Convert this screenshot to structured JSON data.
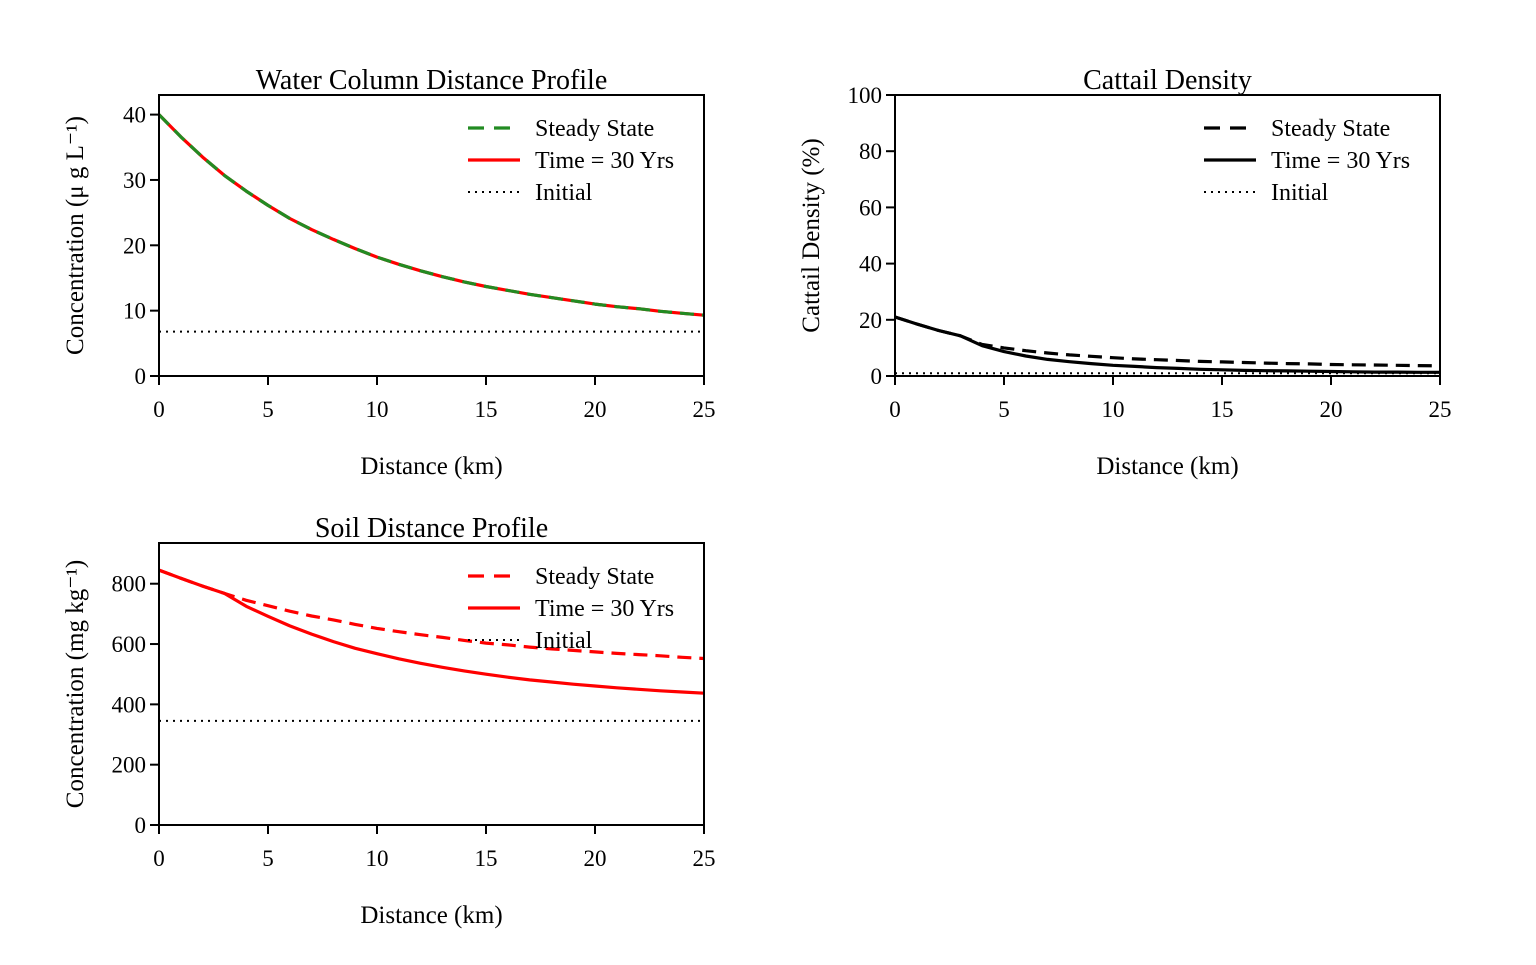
{
  "chart_data": [
    {
      "type": "line",
      "title": "Water Column Distance Profile",
      "xlabel": "Distance (km)",
      "ylabel": "Concentration (μ g L⁻¹)",
      "xlim": [
        0,
        25
      ],
      "ylim": [
        0,
        43
      ],
      "xticks": [
        0,
        5,
        10,
        15,
        20,
        25
      ],
      "yticks": [
        0,
        10,
        20,
        30,
        40
      ],
      "x": [
        0,
        1,
        2,
        3,
        4,
        5,
        6,
        7,
        8,
        9,
        10,
        11,
        12,
        13,
        14,
        15,
        16,
        17,
        18,
        19,
        20,
        21,
        22,
        23,
        24,
        25
      ],
      "legend_position": "top-right",
      "grid": false,
      "series": [
        {
          "name": "Steady State",
          "style": "dashed",
          "color": "#228B22",
          "values": [
            40.0,
            36.6,
            33.5,
            30.7,
            28.3,
            26.1,
            24.1,
            22.4,
            20.9,
            19.5,
            18.2,
            17.1,
            16.1,
            15.2,
            14.4,
            13.7,
            13.1,
            12.5,
            12.0,
            11.5,
            11.0,
            10.6,
            10.3,
            9.9,
            9.6,
            9.3
          ]
        },
        {
          "name": "Time = 30 Yrs",
          "style": "solid",
          "color": "#ff0000",
          "values": [
            40.0,
            36.6,
            33.5,
            30.7,
            28.3,
            26.1,
            24.1,
            22.4,
            20.9,
            19.5,
            18.2,
            17.1,
            16.1,
            15.2,
            14.4,
            13.7,
            13.1,
            12.5,
            12.0,
            11.5,
            11.0,
            10.6,
            10.3,
            9.9,
            9.6,
            9.3
          ]
        },
        {
          "name": "Initial",
          "style": "dotted",
          "color": "#000000",
          "values": [
            6.8,
            6.8,
            6.8,
            6.8,
            6.8,
            6.8,
            6.8,
            6.8,
            6.8,
            6.8,
            6.8,
            6.8,
            6.8,
            6.8,
            6.8,
            6.8,
            6.8,
            6.8,
            6.8,
            6.8,
            6.8,
            6.8,
            6.8,
            6.8,
            6.8,
            6.8
          ]
        }
      ]
    },
    {
      "type": "line",
      "title": "Cattail Density",
      "xlabel": "Distance (km)",
      "ylabel": "Cattail Density (%)",
      "xlim": [
        0,
        25
      ],
      "ylim": [
        0,
        100
      ],
      "xticks": [
        0,
        5,
        10,
        15,
        20,
        25
      ],
      "yticks": [
        0,
        20,
        40,
        60,
        80,
        100
      ],
      "x": [
        0,
        1,
        2,
        3,
        4,
        5,
        6,
        7,
        8,
        9,
        10,
        11,
        12,
        13,
        14,
        15,
        16,
        17,
        18,
        19,
        20,
        21,
        22,
        23,
        24,
        25
      ],
      "legend_position": "top-right",
      "grid": false,
      "series": [
        {
          "name": "Steady State",
          "style": "dashed",
          "color": "#000000",
          "values": [
            21.0,
            18.5,
            16.2,
            14.3,
            11.2,
            10.0,
            9.0,
            8.2,
            7.5,
            7.0,
            6.5,
            6.1,
            5.8,
            5.5,
            5.2,
            5.0,
            4.8,
            4.6,
            4.4,
            4.3,
            4.1,
            4.0,
            3.9,
            3.8,
            3.7,
            3.6
          ]
        },
        {
          "name": "Time = 30 Yrs",
          "style": "solid",
          "color": "#000000",
          "values": [
            21.0,
            18.5,
            16.2,
            14.3,
            10.8,
            8.7,
            7.1,
            5.9,
            5.1,
            4.4,
            3.8,
            3.4,
            3.0,
            2.7,
            2.4,
            2.2,
            2.0,
            1.9,
            1.8,
            1.7,
            1.6,
            1.5,
            1.4,
            1.4,
            1.3,
            1.3
          ]
        },
        {
          "name": "Initial",
          "style": "dotted",
          "color": "#000000",
          "values": [
            1.0,
            1.0,
            1.0,
            1.0,
            1.0,
            1.0,
            1.0,
            1.0,
            1.0,
            1.0,
            1.0,
            1.0,
            1.0,
            1.0,
            1.0,
            1.0,
            1.0,
            1.0,
            1.0,
            1.0,
            1.0,
            1.0,
            1.0,
            1.0,
            1.0,
            1.0
          ]
        }
      ]
    },
    {
      "type": "line",
      "title": "Soil Distance Profile",
      "xlabel": "Distance (km)",
      "ylabel": "Concentration (mg kg⁻¹)",
      "xlim": [
        0,
        25
      ],
      "ylim": [
        0,
        935
      ],
      "xticks": [
        0,
        5,
        10,
        15,
        20,
        25
      ],
      "yticks": [
        0,
        200,
        400,
        600,
        800
      ],
      "x": [
        0,
        1,
        2,
        3,
        4,
        5,
        6,
        7,
        8,
        9,
        10,
        11,
        12,
        13,
        14,
        15,
        16,
        17,
        18,
        19,
        20,
        21,
        22,
        23,
        24,
        25
      ],
      "legend_position": "top-right",
      "grid": false,
      "series": [
        {
          "name": "Steady State",
          "style": "dashed",
          "color": "#ff0000",
          "values": [
            845,
            818,
            792,
            768,
            745,
            727,
            709,
            693,
            680,
            665,
            652,
            641,
            631,
            622,
            612,
            603,
            597,
            590,
            584,
            579,
            574,
            569,
            565,
            561,
            556,
            552
          ]
        },
        {
          "name": "Time = 30 Yrs",
          "style": "solid",
          "color": "#ff0000",
          "values": [
            845,
            818,
            792,
            768,
            725,
            692,
            660,
            633,
            608,
            586,
            568,
            551,
            536,
            523,
            511,
            500,
            490,
            481,
            474,
            467,
            461,
            455,
            450,
            445,
            441,
            437
          ]
        },
        {
          "name": "Initial",
          "style": "dotted",
          "color": "#000000",
          "values": [
            345,
            345,
            345,
            345,
            345,
            345,
            345,
            345,
            345,
            345,
            345,
            345,
            345,
            345,
            345,
            345,
            345,
            345,
            345,
            345,
            345,
            345,
            345,
            345,
            345,
            345
          ]
        }
      ]
    }
  ]
}
